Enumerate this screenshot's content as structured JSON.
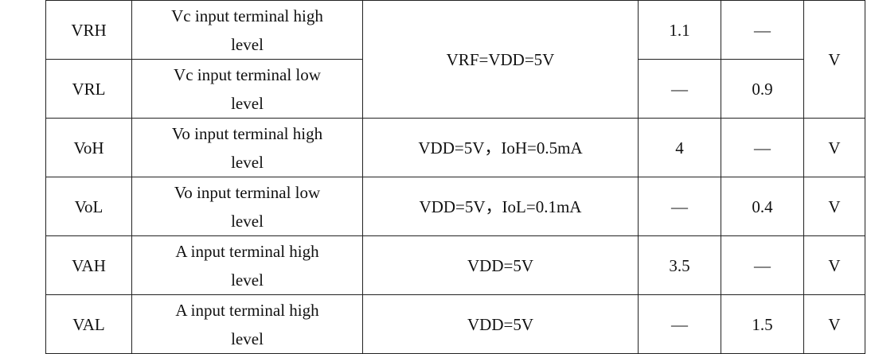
{
  "rows": [
    {
      "symbol": "VRH",
      "desc_line1": "Vc input terminal high",
      "desc_line2": "level",
      "condition": "VRF=VDD=5V",
      "min": "1.1",
      "max": "—",
      "unit": "V"
    },
    {
      "symbol": "VRL",
      "desc_line1": "Vc input terminal low",
      "desc_line2": "level",
      "min": "—",
      "max": "0.9"
    },
    {
      "symbol": "VoH",
      "desc_line1": "Vo input terminal high",
      "desc_line2": "level",
      "condition": "VDD=5V，IoH=0.5mA",
      "min": "4",
      "max": "—",
      "unit": "V"
    },
    {
      "symbol": "VoL",
      "desc_line1": "Vo input terminal low",
      "desc_line2": "level",
      "condition": "VDD=5V，IoL=0.1mA",
      "min": "—",
      "max": "0.4",
      "unit": "V"
    },
    {
      "symbol": "VAH",
      "desc_line1": "A input terminal high",
      "desc_line2": "level",
      "condition": "VDD=5V",
      "min": "3.5",
      "max": "—",
      "unit": "V"
    },
    {
      "symbol": "VAL",
      "desc_line1": "A input terminal high",
      "desc_line2": "level",
      "condition": "VDD=5V",
      "min": "—",
      "max": "1.5",
      "unit": "V"
    }
  ]
}
